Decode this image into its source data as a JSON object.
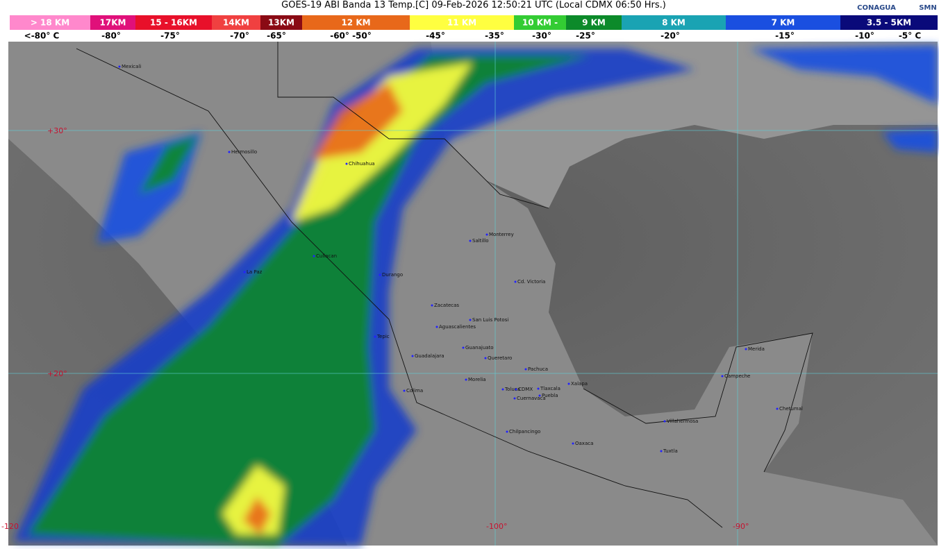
{
  "header": {
    "title": "GOES-19 ABI Banda 13 Temp.[C] 09-Feb-2026 12:50:21 UTC (Local CDMX  06:50 Hrs.)",
    "logos": [
      "CONAGUA",
      "SMN"
    ]
  },
  "legend": {
    "bands": [
      {
        "label": "> 18 KM",
        "color": "#ff88cc"
      },
      {
        "label": "17KM",
        "color": "#e0107a"
      },
      {
        "label": "15 - 16KM",
        "color": "#e8102a"
      },
      {
        "label": "14KM",
        "color": "#f04040"
      },
      {
        "label": "13KM",
        "color": "#8a0a14"
      },
      {
        "label": "12 KM",
        "color": "#e8681a"
      },
      {
        "label": "11 KM",
        "color": "#ffff40"
      },
      {
        "label": "10 KM -",
        "color": "#33cc33"
      },
      {
        "label": "9 KM",
        "color": "#0c8a2a"
      },
      {
        "label": "8 KM",
        "color": "#1aa3b3"
      },
      {
        "label": "7 KM",
        "color": "#1a4fe0"
      },
      {
        "label": "3.5 - 5KM",
        "color": "#0a0a7a"
      }
    ],
    "temps": [
      "<-80° C",
      "-80°",
      "-75°",
      "-70°",
      "-65°",
      "-60° -50°",
      "-45°",
      "-35°",
      "-30°",
      "-25°",
      "-20°",
      "-15°",
      "-10°",
      "-5° C"
    ]
  },
  "map": {
    "grid_labels": [
      "+30°",
      "+20°",
      "-120",
      "-100°",
      "-90°"
    ],
    "cities": [
      "Mexicali",
      "Hermosillo",
      "Chihuahua",
      "Saltillo",
      "Monterrey",
      "Culiacan",
      "La Paz",
      "Durango",
      "Cd. Victoria",
      "Zacatecas",
      "San Luis Potosi",
      "Aguascalientes",
      "Tepic",
      "Guanajuato",
      "Guadalajara",
      "Queretaro",
      "Pachuca",
      "Morelia",
      "Xalapa",
      "Colima",
      "Toluca",
      "CDMX",
      "Tlaxcala",
      "Puebla",
      "Cuernavaca",
      "Chilpancingo",
      "Oaxaca",
      "Villahermosa",
      "Tuxtla",
      "Merida",
      "Campeche",
      "Chetumal"
    ]
  }
}
